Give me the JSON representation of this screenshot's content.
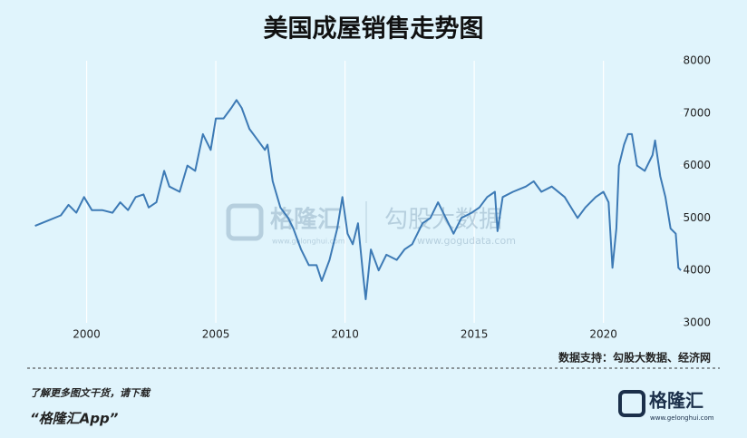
{
  "chart_data": {
    "type": "line",
    "title": "美国成屋销售走势图",
    "source": "数据支持：勾股大数据、经济网",
    "watermark": {
      "brand": "格隆汇",
      "brand_url": "www.gelonghui.com",
      "data_brand": "勾股大数据",
      "data_url": "www.gogudata.com"
    },
    "x": [
      1998.0,
      1998.5,
      1999.0,
      1999.3,
      1999.6,
      1999.9,
      2000.2,
      2000.6,
      2001.0,
      2001.3,
      2001.6,
      2001.9,
      2002.2,
      2002.4,
      2002.7,
      2003.0,
      2003.2,
      2003.6,
      2003.9,
      2004.2,
      2004.5,
      2004.8,
      2005.0,
      2005.3,
      2005.6,
      2005.8,
      2006.0,
      2006.3,
      2006.6,
      2006.9,
      2007.0,
      2007.2,
      2007.5,
      2007.8,
      2008.0,
      2008.3,
      2008.6,
      2008.9,
      2009.1,
      2009.4,
      2009.7,
      2009.9,
      2010.1,
      2010.3,
      2010.5,
      2010.7,
      2010.8,
      2011.0,
      2011.3,
      2011.6,
      2012.0,
      2012.3,
      2012.6,
      2013.0,
      2013.3,
      2013.6,
      2013.9,
      2014.2,
      2014.5,
      2014.9,
      2015.2,
      2015.5,
      2015.8,
      2015.9,
      2016.1,
      2016.5,
      2017.0,
      2017.3,
      2017.6,
      2018.0,
      2018.5,
      2019.0,
      2019.3,
      2019.7,
      2020.0,
      2020.2,
      2020.35,
      2020.5,
      2020.6,
      2020.8,
      2020.95,
      2021.1,
      2021.3,
      2021.6,
      2021.9,
      2022.0,
      2022.2,
      2022.4,
      2022.6,
      2022.8,
      2022.9,
      2023.0
    ],
    "series": [
      {
        "name": "美国成屋销售",
        "color": "#3d7ab5",
        "values": [
          4850,
          4950,
          5050,
          5250,
          5100,
          5400,
          5150,
          5150,
          5100,
          5300,
          5150,
          5400,
          5450,
          5200,
          5300,
          5900,
          5600,
          5500,
          6000,
          5900,
          6600,
          6300,
          6900,
          6900,
          7100,
          7250,
          7100,
          6700,
          6500,
          6300,
          6400,
          5700,
          5200,
          5000,
          4800,
          4400,
          4100,
          4100,
          3800,
          4200,
          4800,
          5400,
          4700,
          4500,
          4900,
          3900,
          3450,
          4400,
          4000,
          4300,
          4200,
          4400,
          4500,
          4900,
          5000,
          5300,
          5000,
          4700,
          5000,
          5100,
          5200,
          5400,
          5500,
          4750,
          5400,
          5500,
          5600,
          5700,
          5500,
          5600,
          5400,
          5000,
          5200,
          5400,
          5500,
          5300,
          4050,
          4800,
          6000,
          6400,
          6600,
          6600,
          6000,
          5900,
          6200,
          6480,
          5800,
          5400,
          4800,
          4700,
          4050,
          4000
        ]
      }
    ],
    "xlim": [
      1997.7,
      2023.1
    ],
    "xticks": [
      2000,
      2005,
      2010,
      2015,
      2020
    ],
    "ylim": [
      3000,
      8000
    ],
    "yticks": [
      3000,
      4000,
      5000,
      6000,
      7000,
      8000
    ],
    "grid": "x",
    "footer": {
      "prompt": "了解更多图文干货，请下载",
      "app": "“格隆汇App”"
    }
  }
}
